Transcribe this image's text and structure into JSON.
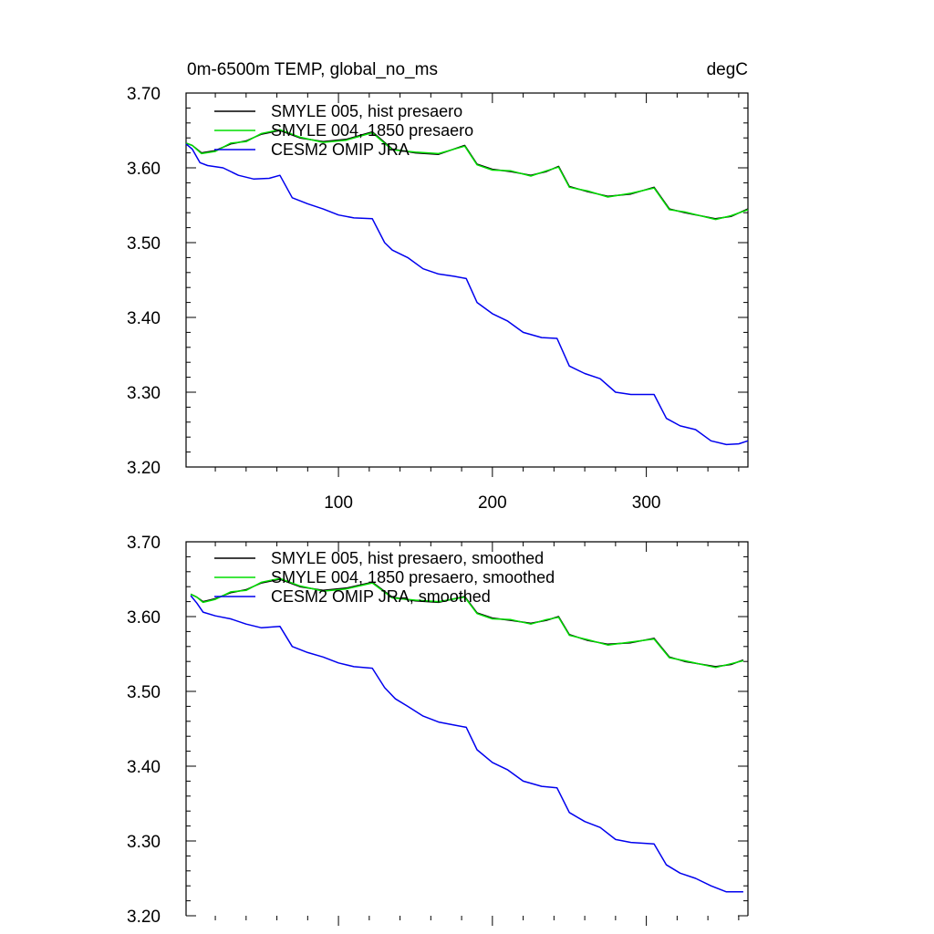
{
  "chart_data": [
    {
      "type": "line",
      "title_left": "0m-6500m TEMP, global_no_ms",
      "title_right": "degC",
      "xlim": [
        1,
        366
      ],
      "ylim": [
        3.2,
        3.7
      ],
      "yticks": [
        3.2,
        3.3,
        3.4,
        3.5,
        3.6,
        3.7
      ],
      "ytick_labels": [
        "3.20",
        "3.30",
        "3.40",
        "3.50",
        "3.60",
        "3.70"
      ],
      "xticks": [
        100,
        200,
        300
      ],
      "xtick_labels": [
        "100",
        "200",
        "300"
      ],
      "legend": [
        "SMYLE 005, hist presaero",
        "SMYLE 004, 1850 presaero",
        "CESM2 OMIP JRA"
      ],
      "series": [
        {
          "name": "SMYLE 005, hist presaero",
          "color": "#000000",
          "x": [
            1,
            5,
            11,
            20,
            30,
            40,
            50,
            62,
            75,
            90,
            105,
            122,
            135,
            150,
            165,
            182,
            190,
            200,
            212,
            225,
            235,
            243,
            250,
            262,
            275,
            290,
            305,
            315,
            325,
            345,
            355,
            366
          ],
          "y": [
            3.633,
            3.63,
            3.62,
            3.623,
            3.632,
            3.636,
            3.645,
            3.65,
            3.64,
            3.635,
            3.638,
            3.648,
            3.625,
            3.62,
            3.618,
            3.63,
            3.605,
            3.598,
            3.595,
            3.59,
            3.595,
            3.602,
            3.575,
            3.568,
            3.562,
            3.565,
            3.574,
            3.545,
            3.54,
            3.532,
            3.535,
            3.545
          ]
        },
        {
          "name": "SMYLE 004, 1850 presaero",
          "color": "#00dd00",
          "x": [
            1,
            5,
            11,
            20,
            30,
            40,
            50,
            62,
            75,
            90,
            105,
            122,
            135,
            150,
            165,
            182,
            190,
            200,
            212,
            225,
            235,
            243,
            250,
            262,
            275,
            290,
            305,
            315,
            325,
            345,
            355,
            366
          ],
          "y": [
            3.633,
            3.63,
            3.619,
            3.622,
            3.633,
            3.635,
            3.646,
            3.651,
            3.641,
            3.634,
            3.637,
            3.647,
            3.624,
            3.621,
            3.619,
            3.629,
            3.604,
            3.597,
            3.596,
            3.589,
            3.596,
            3.601,
            3.574,
            3.569,
            3.561,
            3.566,
            3.573,
            3.544,
            3.541,
            3.531,
            3.536,
            3.544
          ]
        },
        {
          "name": "CESM2 OMIP JRA",
          "color": "#0000ee",
          "x": [
            1,
            5,
            10,
            15,
            25,
            35,
            45,
            55,
            62,
            70,
            80,
            90,
            100,
            110,
            122,
            130,
            135,
            145,
            155,
            165,
            175,
            183,
            190,
            200,
            210,
            220,
            232,
            242,
            250,
            260,
            270,
            280,
            290,
            305,
            313,
            322,
            332,
            342,
            352,
            360,
            366
          ],
          "y": [
            3.632,
            3.625,
            3.607,
            3.603,
            3.6,
            3.59,
            3.585,
            3.586,
            3.59,
            3.56,
            3.552,
            3.545,
            3.537,
            3.533,
            3.532,
            3.5,
            3.49,
            3.48,
            3.465,
            3.458,
            3.455,
            3.452,
            3.42,
            3.405,
            3.395,
            3.38,
            3.373,
            3.372,
            3.335,
            3.325,
            3.318,
            3.3,
            3.297,
            3.297,
            3.265,
            3.255,
            3.25,
            3.235,
            3.23,
            3.231,
            3.235
          ]
        }
      ]
    },
    {
      "type": "line",
      "xlim": [
        1,
        366
      ],
      "ylim": [
        3.2,
        3.7
      ],
      "yticks": [
        3.2,
        3.3,
        3.4,
        3.5,
        3.6,
        3.7
      ],
      "ytick_labels": [
        "3.20",
        "3.30",
        "3.40",
        "3.50",
        "3.60",
        "3.70"
      ],
      "xticks": [
        100,
        200,
        300
      ],
      "legend": [
        "SMYLE 005, hist presaero, smoothed",
        "SMYLE 004, 1850 presaero, smoothed",
        "CESM2 OMIP JRA, smoothed"
      ],
      "series": [
        {
          "name": "SMYLE 005, hist presaero, smoothed",
          "color": "#000000",
          "x": [
            4,
            8,
            12,
            20,
            30,
            40,
            50,
            62,
            75,
            90,
            105,
            122,
            135,
            150,
            165,
            182,
            190,
            200,
            212,
            225,
            235,
            243,
            250,
            262,
            275,
            290,
            305,
            315,
            325,
            345,
            355,
            363
          ],
          "y": [
            3.63,
            3.626,
            3.62,
            3.624,
            3.632,
            3.636,
            3.645,
            3.65,
            3.64,
            3.635,
            3.638,
            3.646,
            3.626,
            3.621,
            3.619,
            3.627,
            3.605,
            3.598,
            3.595,
            3.591,
            3.595,
            3.6,
            3.576,
            3.568,
            3.563,
            3.565,
            3.571,
            3.546,
            3.54,
            3.533,
            3.536,
            3.542
          ]
        },
        {
          "name": "SMYLE 004, 1850 presaero, smoothed",
          "color": "#00dd00",
          "x": [
            4,
            8,
            12,
            20,
            30,
            40,
            50,
            62,
            75,
            90,
            105,
            122,
            135,
            150,
            165,
            182,
            190,
            200,
            212,
            225,
            235,
            243,
            250,
            262,
            275,
            290,
            305,
            315,
            325,
            345,
            355,
            363
          ],
          "y": [
            3.63,
            3.626,
            3.619,
            3.623,
            3.633,
            3.635,
            3.646,
            3.651,
            3.641,
            3.634,
            3.637,
            3.645,
            3.625,
            3.622,
            3.62,
            3.626,
            3.604,
            3.597,
            3.596,
            3.59,
            3.596,
            3.599,
            3.575,
            3.569,
            3.562,
            3.566,
            3.57,
            3.545,
            3.541,
            3.532,
            3.537,
            3.541
          ]
        },
        {
          "name": "CESM2 OMIP JRA, smoothed",
          "color": "#0000ee",
          "x": [
            4,
            8,
            12,
            20,
            30,
            40,
            50,
            62,
            70,
            80,
            90,
            100,
            110,
            122,
            130,
            137,
            145,
            155,
            165,
            175,
            183,
            190,
            200,
            210,
            220,
            232,
            242,
            250,
            260,
            270,
            280,
            290,
            305,
            313,
            322,
            332,
            342,
            352,
            363
          ],
          "y": [
            3.628,
            3.618,
            3.606,
            3.601,
            3.597,
            3.59,
            3.585,
            3.587,
            3.56,
            3.552,
            3.546,
            3.538,
            3.533,
            3.531,
            3.505,
            3.49,
            3.48,
            3.467,
            3.459,
            3.455,
            3.452,
            3.422,
            3.405,
            3.395,
            3.38,
            3.373,
            3.371,
            3.338,
            3.326,
            3.318,
            3.302,
            3.298,
            3.296,
            3.268,
            3.257,
            3.25,
            3.24,
            3.232,
            3.232
          ]
        }
      ]
    }
  ]
}
